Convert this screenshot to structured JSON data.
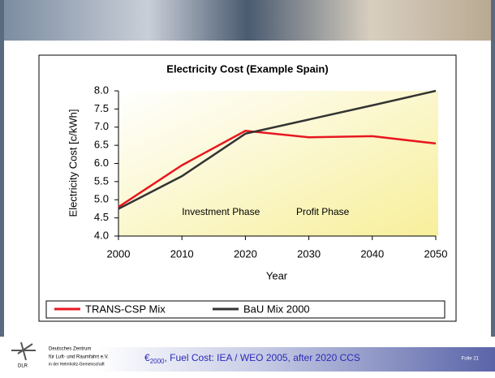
{
  "chart_data": {
    "type": "line",
    "title": "Electricity Cost (Example Spain)",
    "x_label": "Year",
    "y_label": "Electricity Cost [c/kWh]",
    "x": [
      2000,
      2010,
      2020,
      2030,
      2040,
      2050
    ],
    "series": [
      {
        "name": "TRANS-CSP Mix",
        "color": "#e8171f",
        "values": [
          4.8,
          5.95,
          6.9,
          6.72,
          6.75,
          6.55
        ]
      },
      {
        "name": "BaU Mix 2000",
        "color": "#333333",
        "values": [
          4.75,
          5.65,
          6.82,
          7.21,
          7.6,
          8.0
        ]
      }
    ],
    "xlim": [
      2000,
      2050
    ],
    "xticks": [
      2000,
      2010,
      2020,
      2030,
      2040,
      2050
    ],
    "ylim": [
      4.0,
      8.0
    ],
    "yticks": [
      {
        "value": 4,
        "label": "4.0"
      },
      4.5,
      {
        "value": 5,
        "label": "5.0"
      },
      5.5,
      {
        "value": 6,
        "label": "6.0"
      },
      6.5,
      {
        "value": 7,
        "label": "7.0"
      },
      7.5,
      {
        "value": 8,
        "label": "8.0"
      }
    ],
    "annotations": [
      {
        "text": "Investment Phase",
        "x": 2010,
        "y": 4.65
      },
      {
        "text": "Profit Phase",
        "x": 2028,
        "y": 4.65
      }
    ],
    "legend": "bottom",
    "grid": false
  },
  "footer": {
    "org_line1": "Deutsches Zentrum",
    "org_line2": "für Luft- und Raumfahrt e.V.",
    "org_line3": "in der Helmholtz-Gemeinschaft",
    "logo": "DLR",
    "note_currency": "€",
    "note_sub": "2000",
    "note_rest": ", Fuel Cost: IEA / WEO 2005, after 2020 CCS",
    "slide": "Folie 21"
  }
}
